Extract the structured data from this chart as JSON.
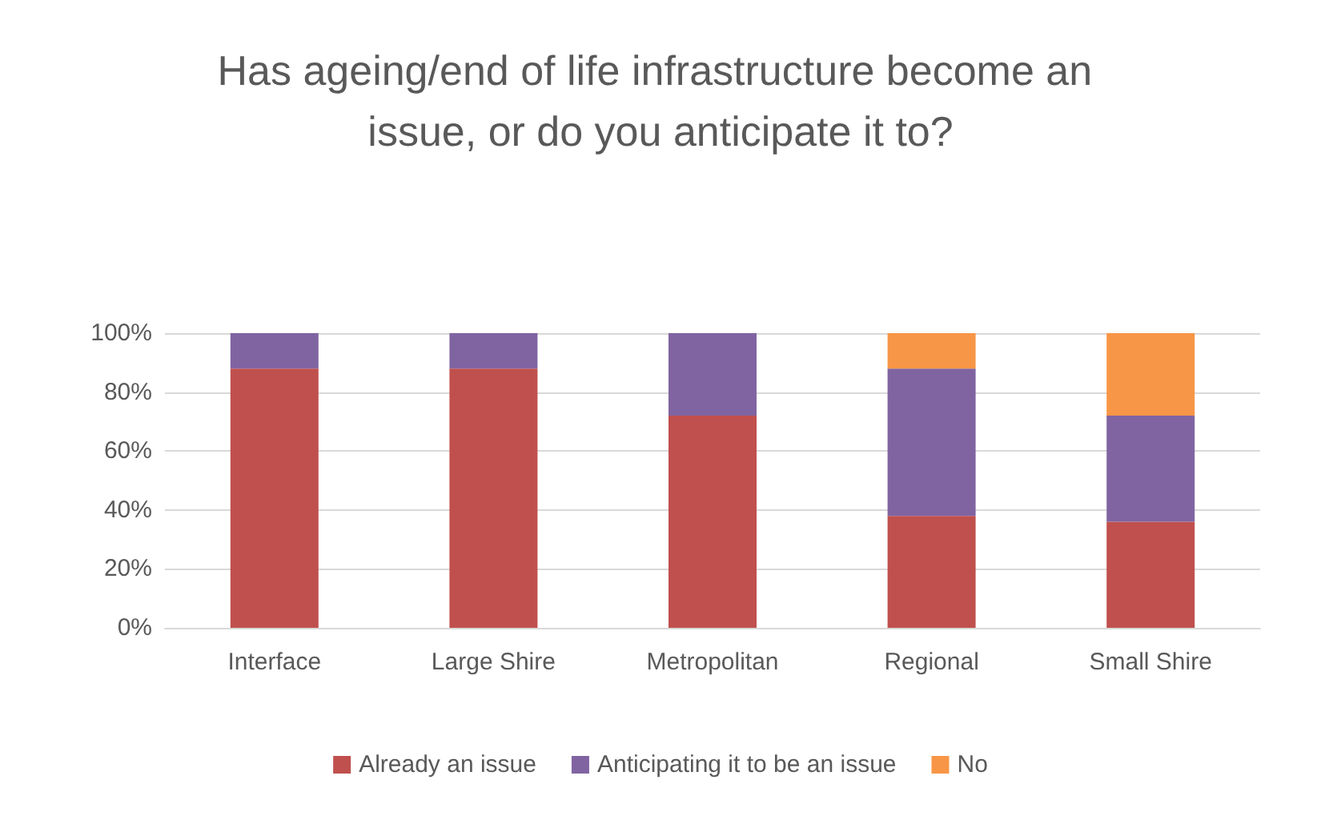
{
  "chart_data": {
    "type": "bar",
    "stacked": true,
    "title": "Has ageing/end of life infrastructure become an issue, or do you anticipate it to?",
    "categories": [
      "Interface",
      "Large Shire",
      "Metropolitan",
      "Regional",
      "Small Shire"
    ],
    "series": [
      {
        "name": "Already an issue",
        "color": "#c0504d",
        "values": [
          88,
          88,
          72,
          38,
          36
        ]
      },
      {
        "name": "Anticipating it to be an issue",
        "color": "#8064a2",
        "values": [
          12,
          12,
          28,
          50,
          36
        ]
      },
      {
        "name": "No",
        "color": "#f79646",
        "values": [
          0,
          0,
          0,
          12,
          28
        ]
      }
    ],
    "ylim": [
      0,
      100
    ],
    "yticks": [
      {
        "value": 0,
        "label": "0%"
      },
      {
        "value": 20,
        "label": "20%"
      },
      {
        "value": 40,
        "label": "40%"
      },
      {
        "value": 60,
        "label": "60%"
      },
      {
        "value": 80,
        "label": "80%"
      },
      {
        "value": 100,
        "label": "100%"
      }
    ],
    "grid": "y",
    "legend": "bottom"
  }
}
